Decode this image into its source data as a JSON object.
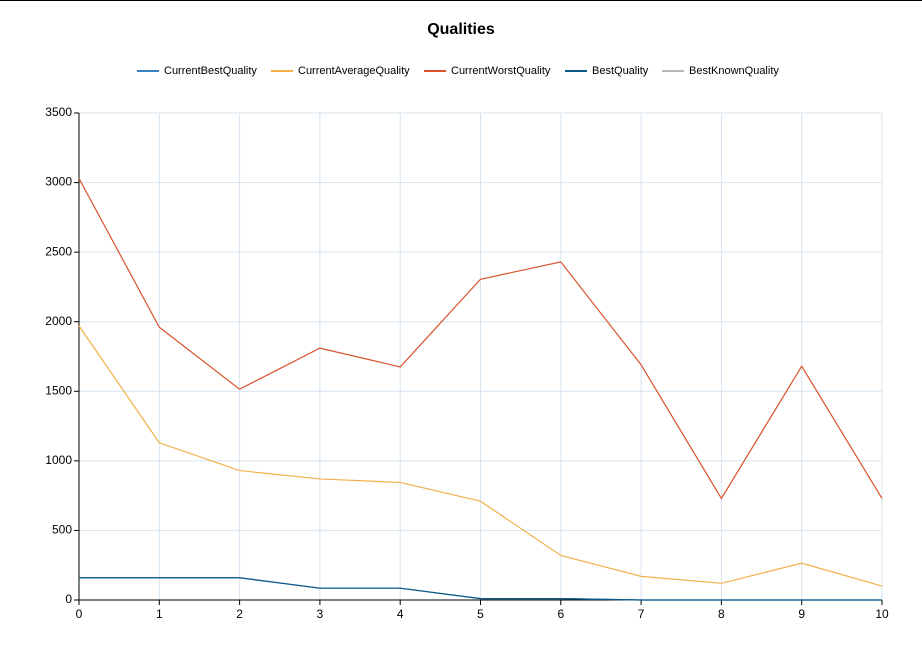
{
  "chart_data": {
    "type": "line",
    "title": "Qualities",
    "x": [
      0,
      1,
      2,
      3,
      4,
      5,
      6,
      7,
      8,
      9,
      10
    ],
    "series": [
      {
        "name": "CurrentBestQuality",
        "color": "#3a80c0",
        "values": [
          160,
          160,
          160,
          85,
          85,
          10,
          10,
          0,
          0,
          0,
          0
        ]
      },
      {
        "name": "CurrentAverageQuality",
        "color": "#f2b04a",
        "values": [
          1970,
          1130,
          930,
          870,
          845,
          710,
          320,
          170,
          120,
          265,
          100
        ]
      },
      {
        "name": "CurrentWorstQuality",
        "color": "#d8512a",
        "values": [
          3030,
          1960,
          1515,
          1810,
          1675,
          2305,
          2430,
          1690,
          730,
          1680,
          730
        ]
      },
      {
        "name": "BestQuality",
        "color": "#0c5a86",
        "values": [
          160,
          160,
          160,
          85,
          85,
          10,
          10,
          0,
          0,
          0,
          0
        ]
      },
      {
        "name": "BestKnownQuality",
        "color": "#b8b8b8",
        "values": [
          null,
          null,
          null,
          null,
          null,
          null,
          null,
          null,
          null,
          null,
          null
        ]
      }
    ],
    "xlim": [
      0,
      10
    ],
    "xticks": [
      0,
      1,
      2,
      3,
      4,
      5,
      6,
      7,
      8,
      9,
      10
    ],
    "ylim": [
      0,
      3500
    ],
    "yticks": [
      0,
      500,
      1000,
      1500,
      2000,
      2500,
      3000,
      3500
    ],
    "grid": true,
    "legend": "top"
  }
}
